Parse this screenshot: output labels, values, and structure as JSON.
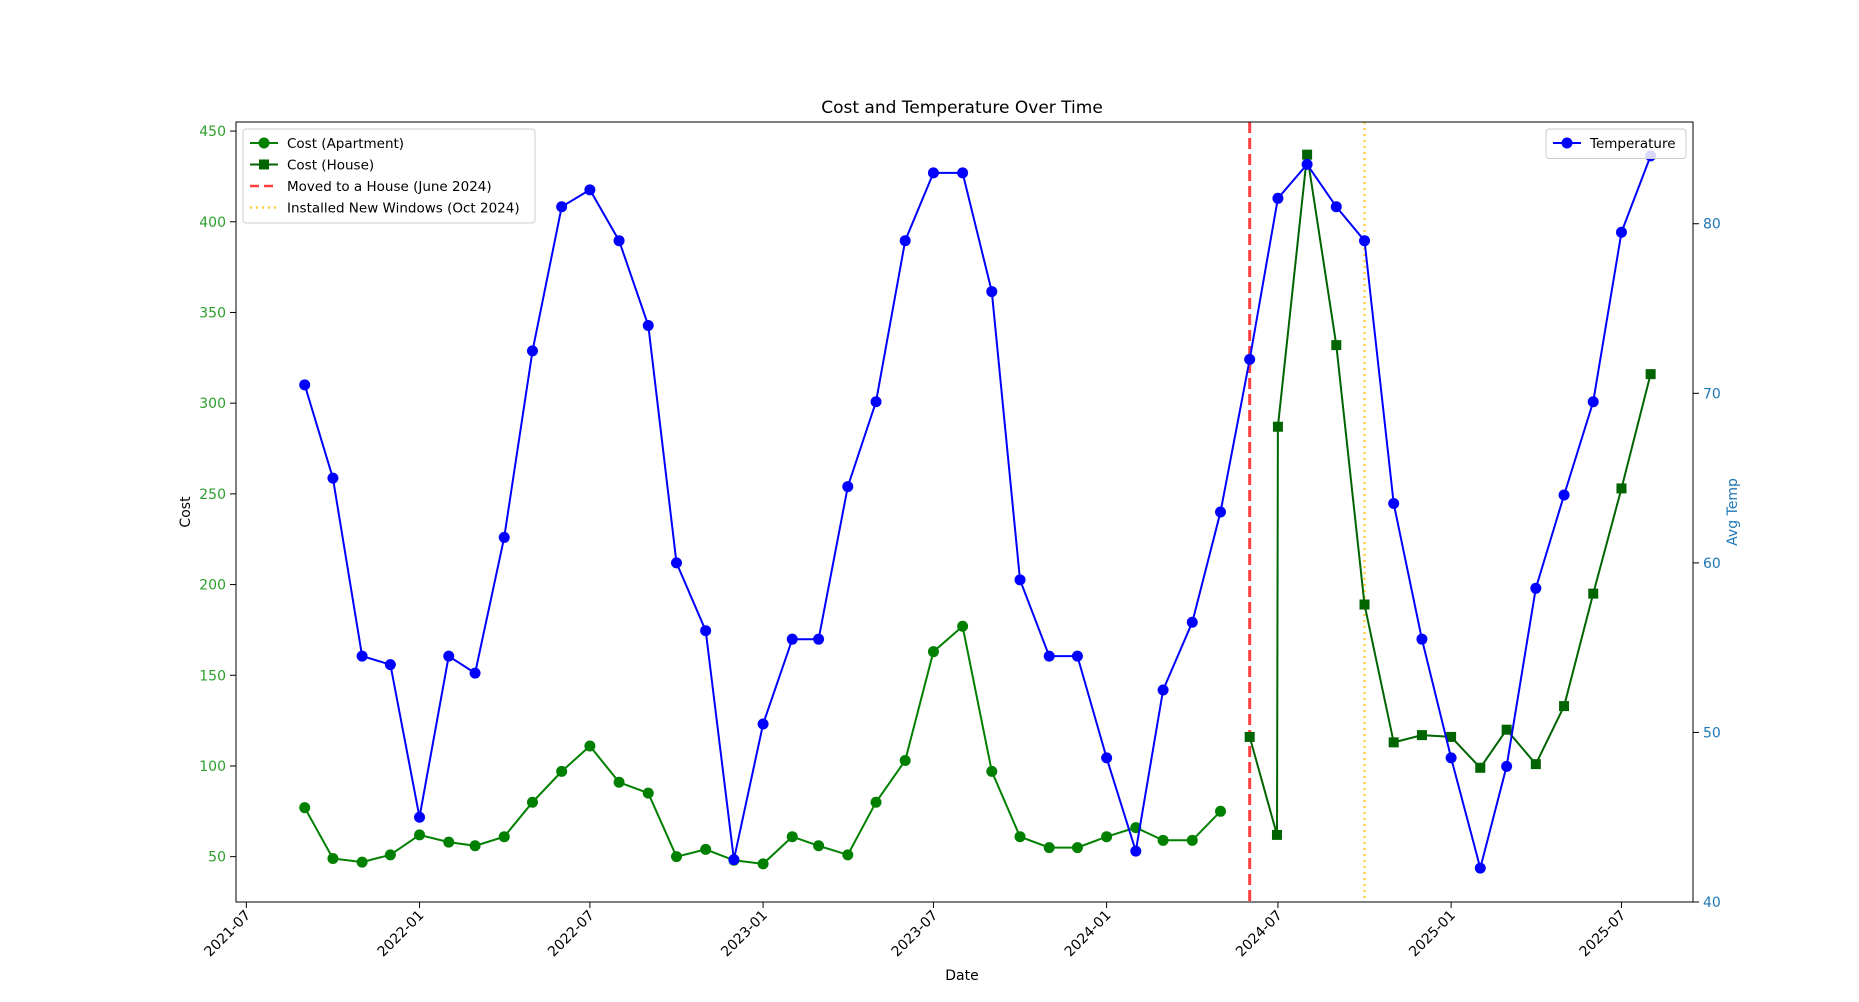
{
  "chart_data": {
    "type": "line",
    "title": "Cost and Temperature Over Time",
    "xlabel": "Date",
    "ylabel_left": "Cost",
    "ylabel_right": "Avg Temp",
    "xlim": [
      "2021-06-20",
      "2025-09-15"
    ],
    "ylim_left": [
      25,
      455
    ],
    "ylim_right": [
      40,
      86
    ],
    "x_ticks": [
      "2021-07",
      "2022-01",
      "2022-07",
      "2023-01",
      "2023-07",
      "2024-01",
      "2024-07",
      "2025-01",
      "2025-07"
    ],
    "y_ticks_left": [
      50,
      100,
      150,
      200,
      250,
      300,
      350,
      400,
      450
    ],
    "y_ticks_right": [
      40,
      50,
      60,
      70,
      80
    ],
    "colors": {
      "apartment": "#008000",
      "house": "#006400",
      "temperature": "#0000ff",
      "move": "#ff0000",
      "windows": "#ffc000",
      "left_axis": "#2ca02c",
      "right_axis": "#1f77b4"
    },
    "series": [
      {
        "name": "Cost (Apartment)",
        "axis": "left",
        "marker": "circle",
        "color": "#008000",
        "x": [
          "2021-09-01",
          "2021-10-01",
          "2021-11-01",
          "2021-12-01",
          "2022-01-01",
          "2022-02-01",
          "2022-03-01",
          "2022-04-01",
          "2022-05-01",
          "2022-06-01",
          "2022-07-01",
          "2022-08-01",
          "2022-09-01",
          "2022-10-01",
          "2022-11-01",
          "2022-12-01",
          "2023-01-01",
          "2023-02-01",
          "2023-03-01",
          "2023-04-01",
          "2023-05-01",
          "2023-06-01",
          "2023-07-01",
          "2023-08-01",
          "2023-09-01",
          "2023-10-01",
          "2023-11-01",
          "2023-12-01",
          "2024-01-01",
          "2024-02-01",
          "2024-03-01",
          "2024-04-01",
          "2024-05-01"
        ],
        "values": [
          77,
          49,
          47,
          51,
          62,
          58,
          56,
          61,
          80,
          97,
          111,
          91,
          85,
          50,
          54,
          48,
          46,
          61,
          56,
          51,
          80,
          103,
          163,
          177,
          97,
          61,
          55,
          55,
          61,
          66,
          59,
          59,
          75
        ]
      },
      {
        "name": "Cost (House)",
        "axis": "left",
        "marker": "square",
        "color": "#006400",
        "x": [
          "2024-06-01",
          "2024-06-30",
          "2024-07-01",
          "2024-08-01",
          "2024-09-01",
          "2024-10-01",
          "2024-11-01",
          "2024-12-01",
          "2025-01-01",
          "2025-02-01",
          "2025-03-01",
          "2025-04-01",
          "2025-05-01",
          "2025-06-01",
          "2025-07-01",
          "2025-08-01"
        ],
        "values": [
          116,
          62,
          287,
          437,
          332,
          189,
          113,
          117,
          116,
          99,
          120,
          101,
          133,
          195,
          253,
          316
        ]
      },
      {
        "name": "Temperature",
        "axis": "right",
        "marker": "circle",
        "color": "#0000ff",
        "x": [
          "2021-09-01",
          "2021-10-01",
          "2021-11-01",
          "2021-12-01",
          "2022-01-01",
          "2022-02-01",
          "2022-03-01",
          "2022-04-01",
          "2022-05-01",
          "2022-06-01",
          "2022-07-01",
          "2022-08-01",
          "2022-09-01",
          "2022-10-01",
          "2022-11-01",
          "2022-12-01",
          "2023-01-01",
          "2023-02-01",
          "2023-03-01",
          "2023-04-01",
          "2023-05-01",
          "2023-06-01",
          "2023-07-01",
          "2023-08-01",
          "2023-09-01",
          "2023-10-01",
          "2023-11-01",
          "2023-12-01",
          "2024-01-01",
          "2024-02-01",
          "2024-03-01",
          "2024-04-01",
          "2024-05-01",
          "2024-06-01",
          "2024-07-01",
          "2024-08-01",
          "2024-09-01",
          "2024-10-01",
          "2024-11-01",
          "2024-12-01",
          "2025-01-01",
          "2025-02-01",
          "2025-03-01",
          "2025-04-01",
          "2025-05-01",
          "2025-06-01",
          "2025-07-01",
          "2025-08-01"
        ],
        "values": [
          70.5,
          65,
          54.5,
          54,
          45,
          54.5,
          53.5,
          61.5,
          72.5,
          81,
          82,
          79,
          74,
          60,
          56,
          42.5,
          50.5,
          55.5,
          55.5,
          64.5,
          69.5,
          79,
          83,
          83,
          76,
          59,
          54.5,
          54.5,
          48.5,
          43,
          52.5,
          56.5,
          63,
          72,
          81.5,
          83.5,
          81,
          79,
          63.5,
          55.5,
          48.5,
          42,
          48,
          58.5,
          64,
          69.5,
          79.5,
          84
        ]
      }
    ],
    "vlines": [
      {
        "name": "Moved to a House (June 2024)",
        "x": "2024-06-01",
        "style": "dashed",
        "color": "#ff0000"
      },
      {
        "name": "Installed New Windows (Oct 2024)",
        "x": "2024-10-01",
        "style": "dotted",
        "color": "#ffc000"
      }
    ],
    "legend_left_placement": "upper-left",
    "legend_right_placement": "upper-right",
    "legend_left": [
      "Cost (Apartment)",
      "Cost (House)",
      "Moved to a House (June 2024)",
      "Installed New Windows (Oct 2024)"
    ],
    "legend_right": [
      "Temperature"
    ],
    "grid": false
  }
}
